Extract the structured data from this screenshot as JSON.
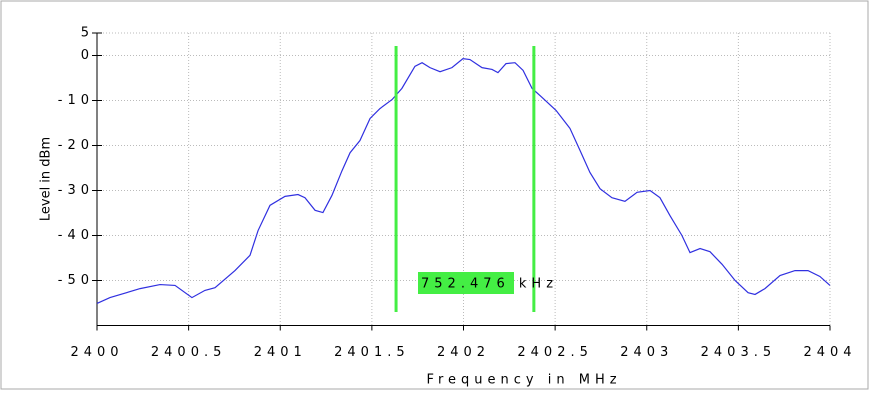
{
  "chart_data": {
    "type": "line",
    "xlabel": "Frequency in MHz",
    "ylabel": "Level in dBm",
    "xlim": [
      2400,
      2404
    ],
    "ylim": [
      -60,
      5
    ],
    "xticks": [
      2400,
      2400.5,
      2401,
      2401.5,
      2402,
      2402.5,
      2403,
      2403.5,
      2404
    ],
    "yticks": [
      5,
      0,
      -10,
      -20,
      -30,
      -40,
      -50
    ],
    "grid": true,
    "x": [
      2400.0,
      2400.071,
      2400.235,
      2400.344,
      2400.426,
      2400.518,
      2400.589,
      2400.644,
      2400.753,
      2400.835,
      2400.879,
      2400.944,
      2401.026,
      2401.097,
      2401.135,
      2401.19,
      2401.233,
      2401.282,
      2401.337,
      2401.381,
      2401.435,
      2401.49,
      2401.544,
      2401.61,
      2401.664,
      2401.735,
      2401.774,
      2401.817,
      2401.872,
      2401.937,
      2401.997,
      2402.035,
      2402.101,
      2402.156,
      2402.188,
      2402.232,
      2402.281,
      2402.325,
      2402.374,
      2402.428,
      2402.505,
      2402.581,
      2402.636,
      2402.69,
      2402.745,
      2402.81,
      2402.881,
      2402.947,
      2403.018,
      2403.072,
      2403.127,
      2403.192,
      2403.236,
      2403.291,
      2403.345,
      2403.411,
      2403.482,
      2403.553,
      2403.591,
      2403.645,
      2403.727,
      2403.809,
      2403.88,
      2403.945,
      2404.0
    ],
    "series": [
      {
        "color": "#3030e0",
        "values": [
          -55.1,
          -53.8,
          -51.8,
          -50.9,
          -51.1,
          -53.8,
          -52.2,
          -51.6,
          -47.8,
          -44.4,
          -38.9,
          -33.3,
          -31.3,
          -30.9,
          -31.6,
          -34.4,
          -34.9,
          -31.1,
          -25.6,
          -21.6,
          -18.9,
          -14.0,
          -11.8,
          -9.8,
          -7.3,
          -2.4,
          -1.6,
          -2.7,
          -3.6,
          -2.7,
          -0.7,
          -0.9,
          -2.7,
          -3.1,
          -3.8,
          -1.8,
          -1.6,
          -3.3,
          -7.3,
          -9.3,
          -12.2,
          -16.2,
          -21.1,
          -26.0,
          -29.6,
          -31.6,
          -32.4,
          -30.4,
          -30.0,
          -31.6,
          -35.6,
          -40.0,
          -43.8,
          -42.9,
          -43.6,
          -46.4,
          -50.0,
          -52.7,
          -53.1,
          -51.8,
          -48.9,
          -47.8,
          -47.8,
          -49.1,
          -51.1
        ]
      }
    ],
    "markers": {
      "x": [
        2401.632,
        2402.384
      ],
      "color": "#44ee44",
      "label": "752.476 kHz"
    }
  }
}
